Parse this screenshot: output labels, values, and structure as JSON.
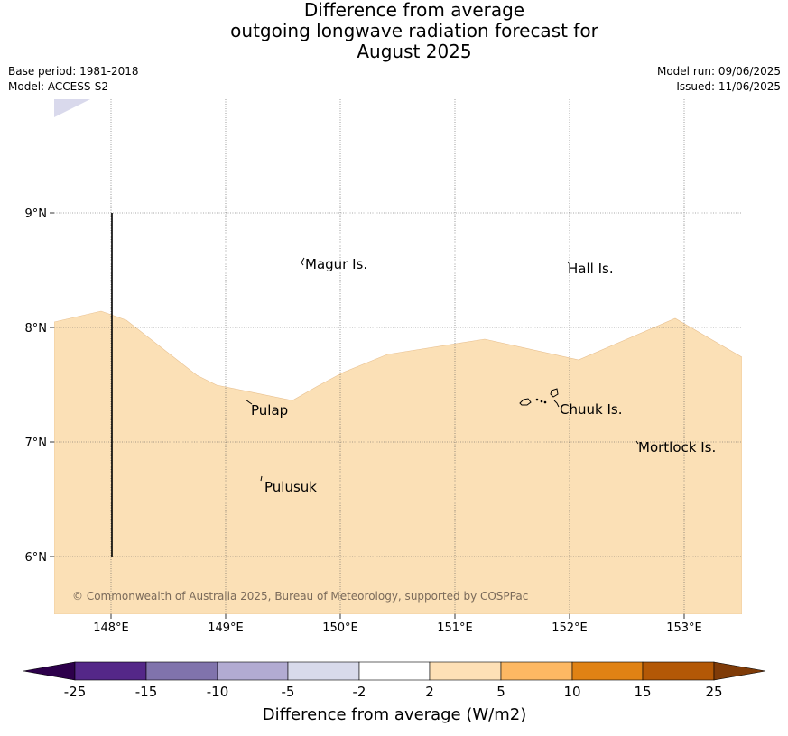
{
  "title": {
    "line1": "Difference from average",
    "line2": "outgoing longwave radiation forecast for",
    "line3": "August 2025"
  },
  "meta": {
    "base_period": "Base period: 1981-2018",
    "model": "Model: ACCESS-S2",
    "model_run": "Model run: 09/06/2025",
    "issued": "Issued: 11/06/2025"
  },
  "map": {
    "lon_ticks": [
      "148°E",
      "149°E",
      "150°E",
      "151°E",
      "152°E",
      "153°E"
    ],
    "lat_ticks": [
      "9°N",
      "8°N",
      "7°N",
      "6°N"
    ],
    "places": [
      "Magur Is.",
      "Hall Is.",
      "Pulap",
      "Chuuk Is.",
      "Mortlock Is.",
      "Pulusuk"
    ],
    "copyright": "© Commonwealth of Australia 2025, Bureau of Meteorology, supported by COSPPac",
    "fill_colors": {
      "light_orange": "#fbe0b6",
      "light_purple": "#d9d9ec"
    }
  },
  "colorbar": {
    "labels": [
      "-25",
      "-15",
      "-10",
      "-5",
      "-2",
      "2",
      "5",
      "10",
      "15",
      "25"
    ],
    "colors": [
      "#2d004b",
      "#542788",
      "#8073ac",
      "#b2abd2",
      "#d8daeb",
      "#ffffff",
      "#fee0b6",
      "#fdb863",
      "#e08214",
      "#b35806",
      "#7f3b08"
    ],
    "title": "Difference from average (W/m2)"
  }
}
